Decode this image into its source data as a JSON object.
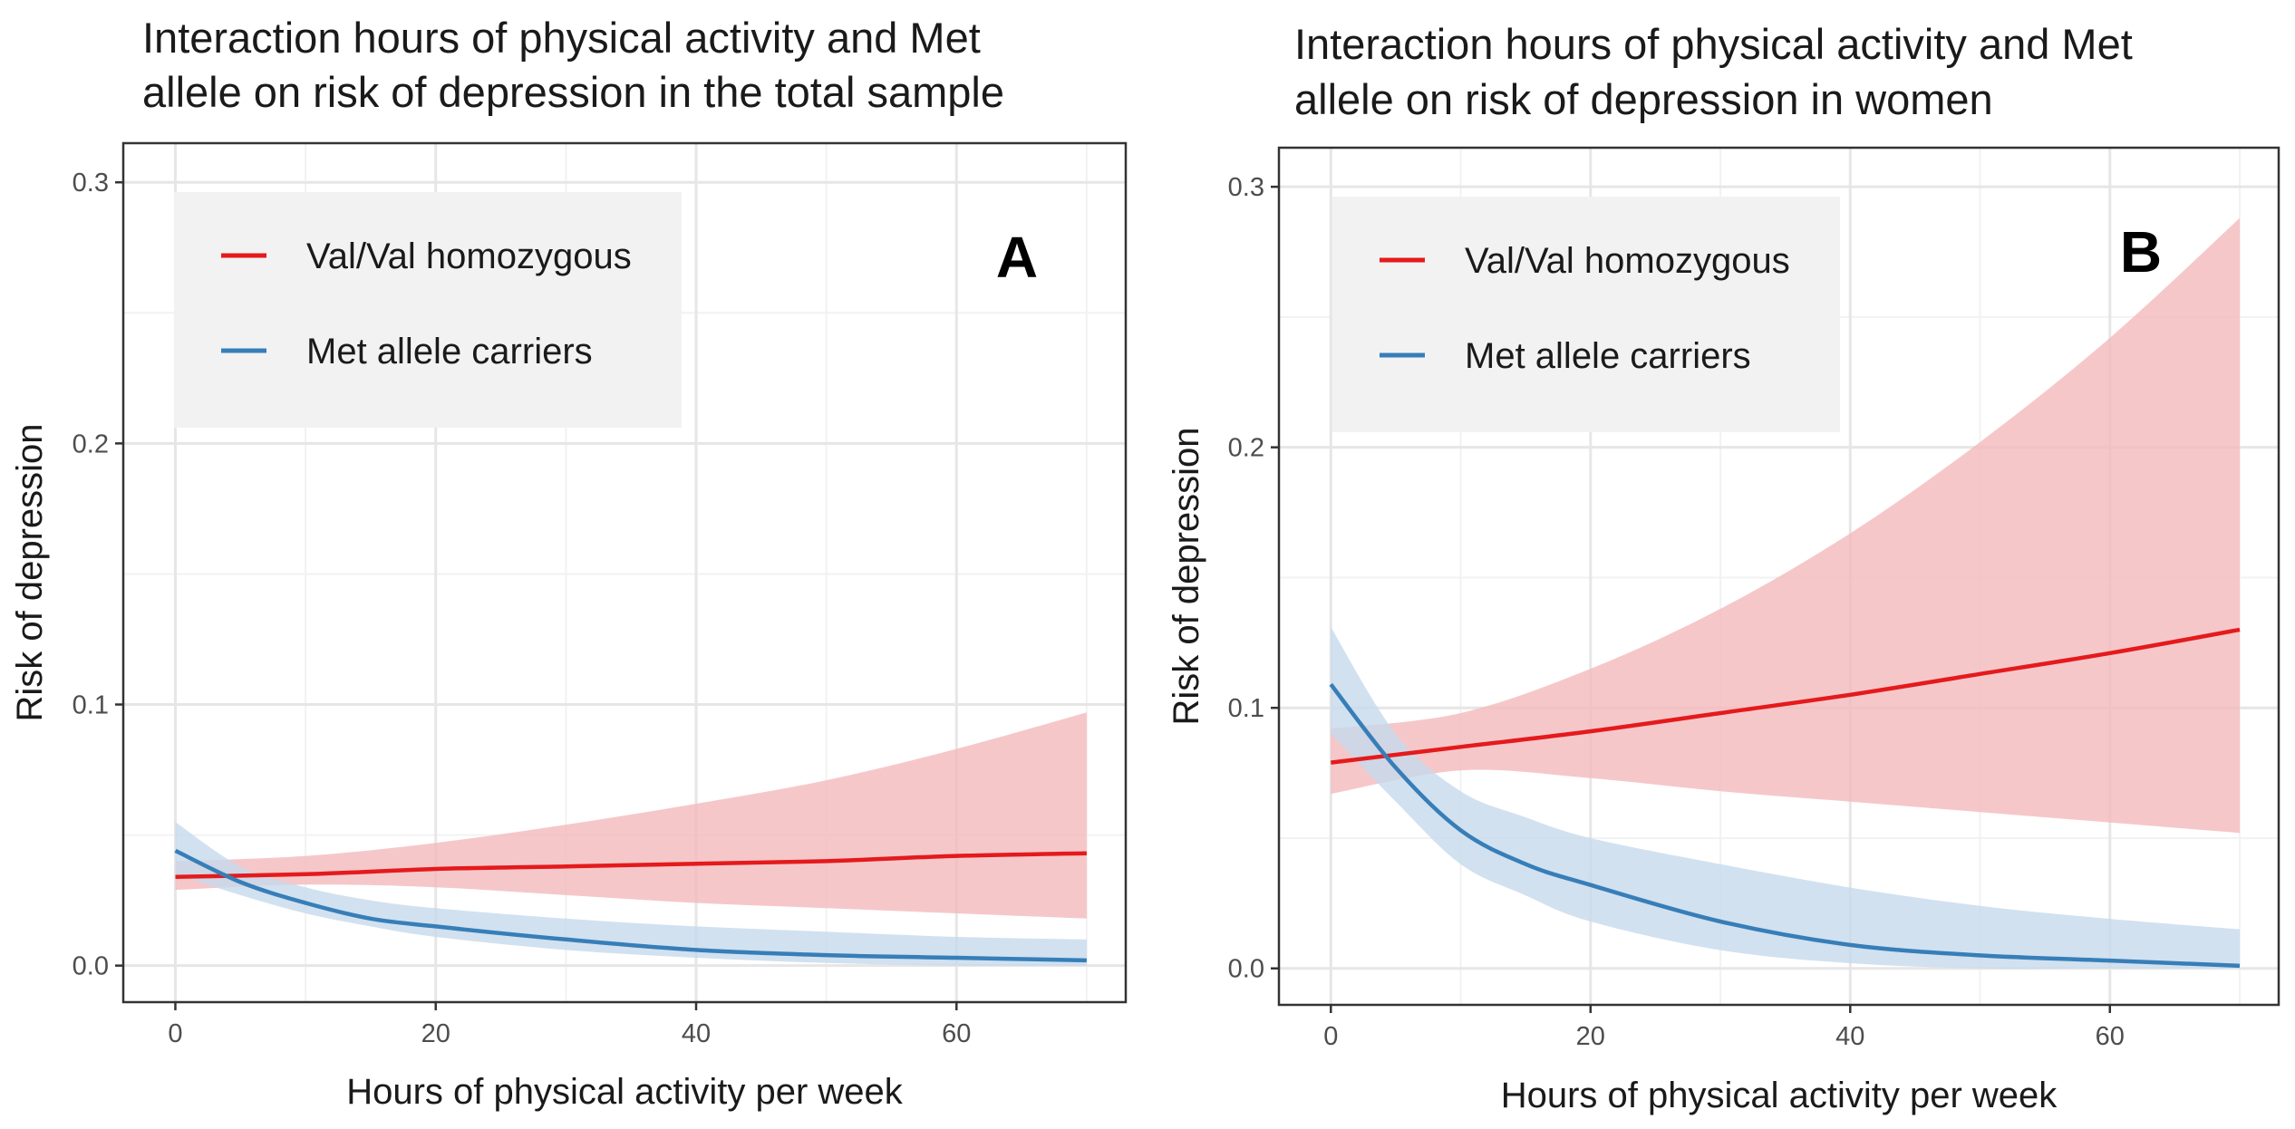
{
  "chart_data": [
    {
      "type": "line",
      "panel_letter": "A",
      "title_lines": [
        "Interaction hours of physical activity and Met",
        "allele on risk of depression in the total sample"
      ],
      "xlabel": "Hours of physical activity per week",
      "ylabel": "Risk of depression",
      "xlim": [
        -4,
        73
      ],
      "ylim": [
        -0.014,
        0.315
      ],
      "xticks": [
        0,
        20,
        40,
        60
      ],
      "yticks": [
        0.0,
        0.1,
        0.2,
        0.3
      ],
      "xtick_labels": [
        "0",
        "20",
        "40",
        "60"
      ],
      "ytick_labels": [
        "0.0",
        "0.1",
        "0.2",
        "0.3"
      ],
      "grid": true,
      "legend_position": "top-left",
      "series": [
        {
          "name": "Val/Val homozygous",
          "color": "#E41A1C",
          "band_color": "#F4B9BB",
          "x": [
            0,
            10,
            20,
            30,
            40,
            50,
            60,
            70
          ],
          "values": [
            0.034,
            0.035,
            0.037,
            0.038,
            0.039,
            0.04,
            0.042,
            0.043
          ],
          "lower": [
            0.029,
            0.031,
            0.03,
            0.027,
            0.024,
            0.022,
            0.02,
            0.018
          ],
          "upper": [
            0.04,
            0.042,
            0.047,
            0.054,
            0.062,
            0.071,
            0.083,
            0.097
          ]
        },
        {
          "name": "Met allele carriers",
          "color": "#377EB8",
          "band_color": "#C6D9EC",
          "x": [
            0,
            5,
            10,
            15,
            20,
            30,
            40,
            50,
            60,
            70
          ],
          "values": [
            0.044,
            0.032,
            0.024,
            0.018,
            0.015,
            0.01,
            0.006,
            0.004,
            0.003,
            0.002
          ],
          "lower": [
            0.035,
            0.027,
            0.02,
            0.015,
            0.011,
            0.006,
            0.003,
            0.001,
            0.0,
            0.0
          ],
          "upper": [
            0.055,
            0.038,
            0.03,
            0.025,
            0.022,
            0.018,
            0.015,
            0.013,
            0.011,
            0.01
          ]
        }
      ]
    },
    {
      "type": "line",
      "panel_letter": "B",
      "title_lines": [
        "Interaction hours of physical activity and Met",
        "allele on risk of depression in women"
      ],
      "xlabel": "Hours of physical activity per week",
      "ylabel": "Risk of depression",
      "xlim": [
        -4,
        73
      ],
      "ylim": [
        -0.014,
        0.315
      ],
      "xticks": [
        0,
        20,
        40,
        60
      ],
      "yticks": [
        0.0,
        0.1,
        0.2,
        0.3
      ],
      "xtick_labels": [
        "0",
        "20",
        "40",
        "60"
      ],
      "ytick_labels": [
        "0.0",
        "0.1",
        "0.2",
        "0.3"
      ],
      "grid": true,
      "legend_position": "top-left",
      "series": [
        {
          "name": "Val/Val homozygous",
          "color": "#E41A1C",
          "band_color": "#F4B9BB",
          "x": [
            0,
            10,
            20,
            30,
            40,
            50,
            60,
            70
          ],
          "values": [
            0.079,
            0.085,
            0.091,
            0.098,
            0.105,
            0.113,
            0.121,
            0.13
          ],
          "lower": [
            0.067,
            0.076,
            0.073,
            0.068,
            0.064,
            0.06,
            0.056,
            0.052
          ],
          "upper": [
            0.092,
            0.098,
            0.115,
            0.138,
            0.167,
            0.202,
            0.242,
            0.288
          ]
        },
        {
          "name": "Met allele carriers",
          "color": "#377EB8",
          "band_color": "#C6D9EC",
          "x": [
            0,
            5,
            10,
            15,
            20,
            30,
            40,
            50,
            60,
            70
          ],
          "values": [
            0.109,
            0.077,
            0.053,
            0.04,
            0.032,
            0.018,
            0.009,
            0.005,
            0.003,
            0.001
          ],
          "lower": [
            0.09,
            0.064,
            0.04,
            0.028,
            0.018,
            0.007,
            0.002,
            0.0,
            0.0,
            0.0
          ],
          "upper": [
            0.131,
            0.09,
            0.068,
            0.058,
            0.05,
            0.04,
            0.031,
            0.024,
            0.019,
            0.015
          ]
        }
      ]
    }
  ]
}
